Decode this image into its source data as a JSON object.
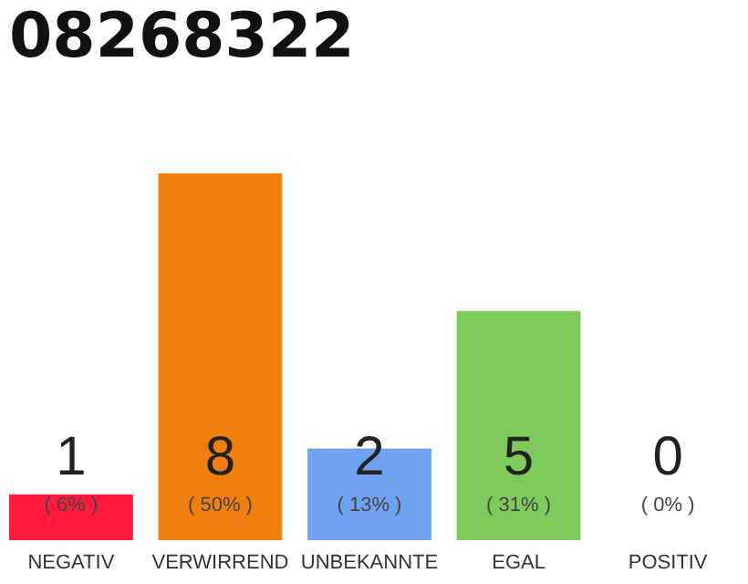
{
  "chart_data": {
    "type": "bar",
    "title": "08268322",
    "categories": [
      "NEGATIV",
      "VERWIRREND",
      "UNBEKANNTE",
      "EGAL",
      "POSITIV"
    ],
    "values": [
      1,
      8,
      2,
      5,
      0
    ],
    "colors": [
      "#ff1a3c",
      "#f07f0f",
      "#6fa2f0",
      "#7ecb5b",
      "#d0d0d0"
    ],
    "data_labels": true,
    "annotations": [
      "( 6% )",
      "( 50% )",
      "( 13% )",
      "( 31% )",
      "( 0% )"
    ],
    "grid": false
  }
}
